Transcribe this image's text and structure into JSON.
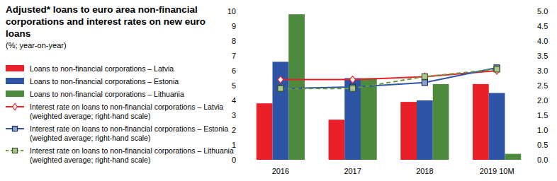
{
  "chart_data": {
    "type": "bar",
    "title": "Adjusted* loans to euro area non-financial corporations and interest rates on new euro loans",
    "subtitle": "(%; year-on-year)",
    "categories": [
      "2016",
      "2017",
      "2018",
      "2019 10M"
    ],
    "series": [
      {
        "name": "Loans to non-financial corporations – Latvia",
        "type": "bar",
        "color": "#e8202a",
        "values": [
          3.8,
          2.7,
          3.9,
          5.1
        ]
      },
      {
        "name": "Loans to non-financial corporations – Estonia",
        "type": "bar",
        "color": "#2e55a5",
        "values": [
          6.6,
          5.5,
          4.0,
          4.5
        ]
      },
      {
        "name": "Loans to non-financial corporations – Lithuania",
        "type": "bar",
        "color": "#4e8a3e",
        "values": [
          9.8,
          5.5,
          5.1,
          0.4
        ]
      },
      {
        "name": "Interest rate on loans to non-financial corporations – Latvia (weighted average; right-hand scale)",
        "type": "line",
        "axis": "y2",
        "color": "#e8202a",
        "marker": "diamond",
        "line_style": "solid",
        "values": [
          2.7,
          2.7,
          2.8,
          3.0
        ]
      },
      {
        "name": "Interest rate on loans to non-financial corporations – Estonia (weighted average; right-hand scale)",
        "type": "line",
        "axis": "y2",
        "color": "#2e55a5",
        "marker": "square",
        "line_style": "solid",
        "values": [
          2.4,
          2.45,
          2.6,
          3.1
        ]
      },
      {
        "name": "Interest rate on loans to non-financial corporations – Lithuania (weighted average; right-hand scale)",
        "type": "line",
        "axis": "y2",
        "color": "#6a9a3c",
        "marker": "square",
        "line_style": "dashed",
        "values": [
          2.4,
          2.4,
          2.8,
          3.05
        ]
      }
    ],
    "ylim": [
      0,
      10
    ],
    "yticks": [
      0,
      1,
      2,
      3,
      4,
      5,
      6,
      7,
      8,
      9,
      10
    ],
    "y2lim": [
      0,
      5
    ],
    "y2ticks": [
      {
        "value": 0,
        "label": "0.0"
      },
      0.5,
      {
        "value": 1,
        "label": "1.0"
      },
      1.5,
      {
        "value": 2,
        "label": "2.0"
      },
      2.5,
      {
        "value": 3,
        "label": "3.0"
      },
      3.5,
      {
        "value": 4,
        "label": "4.0"
      },
      4.5,
      {
        "value": 5,
        "label": "5.0"
      }
    ],
    "grid": false,
    "legend": "left"
  }
}
